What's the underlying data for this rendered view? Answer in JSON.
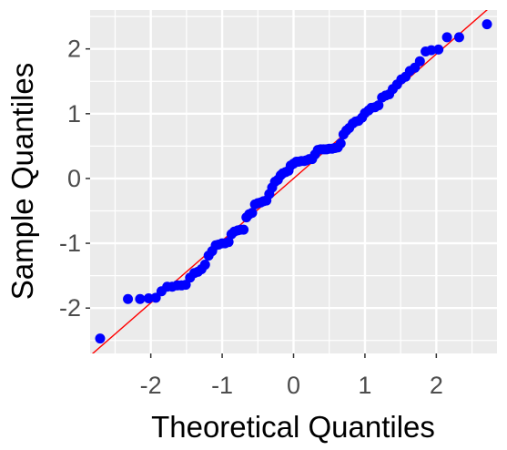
{
  "chart_data": {
    "type": "scatter",
    "title": "",
    "xlabel": "Theoretical Quantiles",
    "ylabel": "Sample Quantiles",
    "xlim": [
      -2.85,
      2.85
    ],
    "ylim": [
      -2.7,
      2.6
    ],
    "x_ticks": [
      -2,
      -1,
      0,
      1,
      2
    ],
    "x_tick_labels": [
      "-2",
      "-1",
      "0",
      "1",
      "2"
    ],
    "y_ticks": [
      -2,
      -1,
      0,
      1,
      2
    ],
    "y_tick_labels": [
      "-2",
      "-1",
      "0",
      "1",
      "2"
    ],
    "grid": true,
    "colors": {
      "panel_background": "#ebebeb",
      "grid": "#ffffff",
      "points": "#0000ff",
      "reference_line": "#ff0000"
    },
    "reference_line": {
      "intercept": 0.0,
      "slope": 0.96
    },
    "points": [
      [
        -2.71,
        -2.47
      ],
      [
        -2.32,
        -1.86
      ],
      [
        -2.15,
        -1.86
      ],
      [
        -2.03,
        -1.85
      ],
      [
        -1.93,
        -1.84
      ],
      [
        -1.85,
        -1.74
      ],
      [
        -1.77,
        -1.67
      ],
      [
        -1.7,
        -1.67
      ],
      [
        -1.63,
        -1.65
      ],
      [
        -1.57,
        -1.65
      ],
      [
        -1.51,
        -1.64
      ],
      [
        -1.45,
        -1.53
      ],
      [
        -1.39,
        -1.46
      ],
      [
        -1.34,
        -1.44
      ],
      [
        -1.29,
        -1.4
      ],
      [
        -1.24,
        -1.33
      ],
      [
        -1.19,
        -1.19
      ],
      [
        -1.14,
        -1.12
      ],
      [
        -1.09,
        -1.03
      ],
      [
        -1.05,
        -1.02
      ],
      [
        -1.0,
        -1.0
      ],
      [
        -0.96,
        -1.0
      ],
      [
        -0.91,
        -0.98
      ],
      [
        -0.87,
        -0.86
      ],
      [
        -0.83,
        -0.82
      ],
      [
        -0.78,
        -0.8
      ],
      [
        -0.74,
        -0.79
      ],
      [
        -0.7,
        -0.79
      ],
      [
        -0.66,
        -0.6
      ],
      [
        -0.62,
        -0.55
      ],
      [
        -0.58,
        -0.53
      ],
      [
        -0.54,
        -0.4
      ],
      [
        -0.5,
        -0.38
      ],
      [
        -0.46,
        -0.37
      ],
      [
        -0.42,
        -0.35
      ],
      [
        -0.38,
        -0.34
      ],
      [
        -0.34,
        -0.24
      ],
      [
        -0.3,
        -0.14
      ],
      [
        -0.26,
        -0.05
      ],
      [
        -0.22,
        -0.02
      ],
      [
        -0.18,
        0.05
      ],
      [
        -0.15,
        0.08
      ],
      [
        -0.11,
        0.1
      ],
      [
        -0.07,
        0.12
      ],
      [
        -0.04,
        0.2
      ],
      [
        0.0,
        0.23
      ],
      [
        0.04,
        0.26
      ],
      [
        0.07,
        0.26
      ],
      [
        0.11,
        0.27
      ],
      [
        0.15,
        0.27
      ],
      [
        0.18,
        0.28
      ],
      [
        0.22,
        0.3
      ],
      [
        0.26,
        0.3
      ],
      [
        0.3,
        0.37
      ],
      [
        0.34,
        0.44
      ],
      [
        0.38,
        0.45
      ],
      [
        0.42,
        0.45
      ],
      [
        0.46,
        0.45
      ],
      [
        0.5,
        0.46
      ],
      [
        0.54,
        0.46
      ],
      [
        0.58,
        0.47
      ],
      [
        0.62,
        0.48
      ],
      [
        0.66,
        0.54
      ],
      [
        0.7,
        0.68
      ],
      [
        0.74,
        0.74
      ],
      [
        0.78,
        0.78
      ],
      [
        0.83,
        0.85
      ],
      [
        0.87,
        0.88
      ],
      [
        0.91,
        0.89
      ],
      [
        0.96,
        0.94
      ],
      [
        1.0,
        1.01
      ],
      [
        1.05,
        1.05
      ],
      [
        1.09,
        1.09
      ],
      [
        1.14,
        1.1
      ],
      [
        1.19,
        1.13
      ],
      [
        1.24,
        1.25
      ],
      [
        1.29,
        1.28
      ],
      [
        1.34,
        1.3
      ],
      [
        1.39,
        1.38
      ],
      [
        1.45,
        1.45
      ],
      [
        1.51,
        1.53
      ],
      [
        1.57,
        1.57
      ],
      [
        1.63,
        1.66
      ],
      [
        1.7,
        1.71
      ],
      [
        1.77,
        1.81
      ],
      [
        1.85,
        1.96
      ],
      [
        1.93,
        1.98
      ],
      [
        2.03,
        1.99
      ],
      [
        2.15,
        2.18
      ],
      [
        2.32,
        2.18
      ],
      [
        2.71,
        2.38
      ]
    ]
  }
}
